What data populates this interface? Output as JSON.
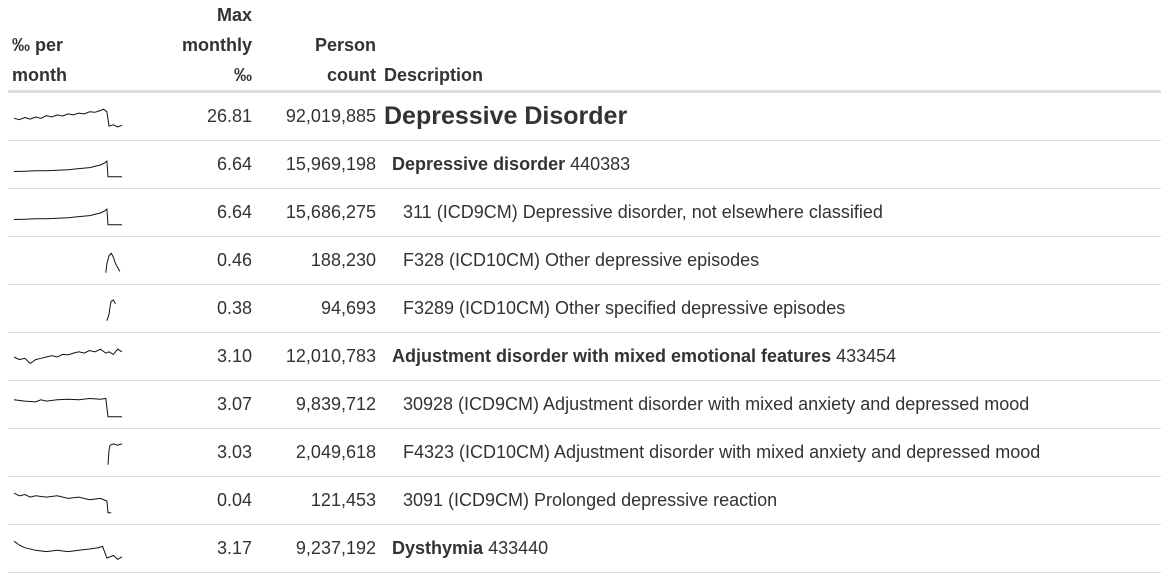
{
  "headers": {
    "sparkline": [
      "‰ per",
      "month"
    ],
    "max": [
      "Max",
      "monthly",
      "‰"
    ],
    "count": [
      "Person",
      "count"
    ],
    "description": "Description"
  },
  "rows": [
    {
      "max": "26.81",
      "count": "92,019,885",
      "level": 0,
      "bold": true,
      "name": "Depressive Disorder",
      "code": "",
      "spark": [
        [
          0,
          0.55
        ],
        [
          0.05,
          0.6
        ],
        [
          0.1,
          0.52
        ],
        [
          0.15,
          0.58
        ],
        [
          0.2,
          0.5
        ],
        [
          0.25,
          0.55
        ],
        [
          0.3,
          0.45
        ],
        [
          0.35,
          0.5
        ],
        [
          0.4,
          0.42
        ],
        [
          0.45,
          0.46
        ],
        [
          0.5,
          0.38
        ],
        [
          0.55,
          0.42
        ],
        [
          0.6,
          0.35
        ],
        [
          0.65,
          0.38
        ],
        [
          0.7,
          0.3
        ],
        [
          0.75,
          0.32
        ],
        [
          0.8,
          0.25
        ],
        [
          0.83,
          0.2
        ],
        [
          0.86,
          0.3
        ],
        [
          0.88,
          0.85
        ],
        [
          0.92,
          0.8
        ],
        [
          0.96,
          0.88
        ],
        [
          1,
          0.82
        ]
      ]
    },
    {
      "max": "6.64",
      "count": "15,969,198",
      "level": 1,
      "bold": true,
      "name": "Depressive disorder",
      "code": "440383",
      "spark": [
        [
          0,
          0.75
        ],
        [
          0.1,
          0.74
        ],
        [
          0.2,
          0.72
        ],
        [
          0.3,
          0.72
        ],
        [
          0.4,
          0.7
        ],
        [
          0.5,
          0.68
        ],
        [
          0.6,
          0.64
        ],
        [
          0.7,
          0.6
        ],
        [
          0.8,
          0.5
        ],
        [
          0.84,
          0.42
        ],
        [
          0.86,
          0.35
        ],
        [
          0.87,
          0.95
        ],
        [
          0.9,
          0.95
        ],
        [
          1,
          0.95
        ]
      ]
    },
    {
      "max": "6.64",
      "count": "15,686,275",
      "level": 2,
      "bold": false,
      "name": "311 (ICD9CM) Depressive disorder, not elsewhere classified",
      "code": "",
      "spark": [
        [
          0,
          0.75
        ],
        [
          0.1,
          0.74
        ],
        [
          0.2,
          0.72
        ],
        [
          0.3,
          0.72
        ],
        [
          0.4,
          0.7
        ],
        [
          0.5,
          0.68
        ],
        [
          0.6,
          0.64
        ],
        [
          0.7,
          0.6
        ],
        [
          0.8,
          0.5
        ],
        [
          0.84,
          0.42
        ],
        [
          0.86,
          0.35
        ],
        [
          0.87,
          0.95
        ],
        [
          0.9,
          0.95
        ],
        [
          1,
          0.95
        ]
      ]
    },
    {
      "max": "0.46",
      "count": "188,230",
      "level": 2,
      "bold": false,
      "name": "F328 (ICD10CM) Other depressive episodes",
      "code": "",
      "spark": [
        [
          0.85,
          0.95
        ],
        [
          0.86,
          0.6
        ],
        [
          0.88,
          0.3
        ],
        [
          0.9,
          0.2
        ],
        [
          0.92,
          0.35
        ],
        [
          0.94,
          0.6
        ],
        [
          0.96,
          0.75
        ],
        [
          0.98,
          0.9
        ]
      ]
    },
    {
      "max": "0.38",
      "count": "94,693",
      "level": 2,
      "bold": false,
      "name": "F3289 (ICD10CM) Other specified depressive episodes",
      "code": "",
      "spark": [
        [
          0.86,
          0.95
        ],
        [
          0.88,
          0.7
        ],
        [
          0.89,
          0.4
        ],
        [
          0.9,
          0.2
        ],
        [
          0.92,
          0.15
        ],
        [
          0.94,
          0.3
        ]
      ]
    },
    {
      "max": "3.10",
      "count": "12,010,783",
      "level": 1,
      "bold": true,
      "name": "Adjustment disorder with mixed emotional features",
      "code": "433454",
      "spark": [
        [
          0,
          0.5
        ],
        [
          0.05,
          0.6
        ],
        [
          0.1,
          0.55
        ],
        [
          0.15,
          0.75
        ],
        [
          0.2,
          0.6
        ],
        [
          0.25,
          0.55
        ],
        [
          0.3,
          0.5
        ],
        [
          0.35,
          0.45
        ],
        [
          0.4,
          0.5
        ],
        [
          0.45,
          0.4
        ],
        [
          0.5,
          0.42
        ],
        [
          0.55,
          0.35
        ],
        [
          0.6,
          0.3
        ],
        [
          0.65,
          0.35
        ],
        [
          0.7,
          0.25
        ],
        [
          0.75,
          0.3
        ],
        [
          0.8,
          0.2
        ],
        [
          0.85,
          0.35
        ],
        [
          0.88,
          0.3
        ],
        [
          0.92,
          0.4
        ],
        [
          0.96,
          0.2
        ],
        [
          1,
          0.3
        ]
      ]
    },
    {
      "max": "3.07",
      "count": "9,839,712",
      "level": 2,
      "bold": false,
      "name": "30928 (ICD9CM) Adjustment disorder with mixed anxiety and depressed mood",
      "code": "",
      "spark": [
        [
          0,
          0.3
        ],
        [
          0.1,
          0.35
        ],
        [
          0.2,
          0.38
        ],
        [
          0.25,
          0.3
        ],
        [
          0.3,
          0.35
        ],
        [
          0.4,
          0.3
        ],
        [
          0.5,
          0.28
        ],
        [
          0.6,
          0.3
        ],
        [
          0.7,
          0.25
        ],
        [
          0.8,
          0.28
        ],
        [
          0.85,
          0.25
        ],
        [
          0.87,
          0.95
        ],
        [
          0.9,
          0.95
        ],
        [
          1,
          0.95
        ]
      ]
    },
    {
      "max": "3.03",
      "count": "2,049,618",
      "level": 2,
      "bold": false,
      "name": "F4323 (ICD10CM) Adjustment disorder with mixed anxiety and depressed mood",
      "code": "",
      "spark": [
        [
          0.87,
          0.95
        ],
        [
          0.88,
          0.4
        ],
        [
          0.89,
          0.2
        ],
        [
          0.92,
          0.15
        ],
        [
          0.96,
          0.2
        ],
        [
          1,
          0.15
        ]
      ]
    },
    {
      "max": "0.04",
      "count": "121,453",
      "level": 2,
      "bold": false,
      "name": "3091 (ICD9CM) Prolonged depressive reaction",
      "code": "",
      "spark": [
        [
          0,
          0.2
        ],
        [
          0.05,
          0.3
        ],
        [
          0.1,
          0.25
        ],
        [
          0.15,
          0.35
        ],
        [
          0.2,
          0.3
        ],
        [
          0.3,
          0.35
        ],
        [
          0.4,
          0.3
        ],
        [
          0.5,
          0.4
        ],
        [
          0.6,
          0.35
        ],
        [
          0.7,
          0.45
        ],
        [
          0.8,
          0.4
        ],
        [
          0.86,
          0.5
        ],
        [
          0.87,
          0.95
        ],
        [
          0.9,
          0.95
        ]
      ]
    },
    {
      "max": "3.17",
      "count": "9,237,192",
      "level": 1,
      "bold": true,
      "name": "Dysthymia",
      "code": "433440",
      "spark": [
        [
          0,
          0.2
        ],
        [
          0.05,
          0.35
        ],
        [
          0.1,
          0.45
        ],
        [
          0.2,
          0.55
        ],
        [
          0.3,
          0.6
        ],
        [
          0.4,
          0.55
        ],
        [
          0.5,
          0.6
        ],
        [
          0.6,
          0.55
        ],
        [
          0.7,
          0.5
        ],
        [
          0.78,
          0.45
        ],
        [
          0.82,
          0.4
        ],
        [
          0.86,
          0.85
        ],
        [
          0.92,
          0.75
        ],
        [
          0.96,
          0.9
        ],
        [
          1,
          0.8
        ]
      ]
    }
  ]
}
